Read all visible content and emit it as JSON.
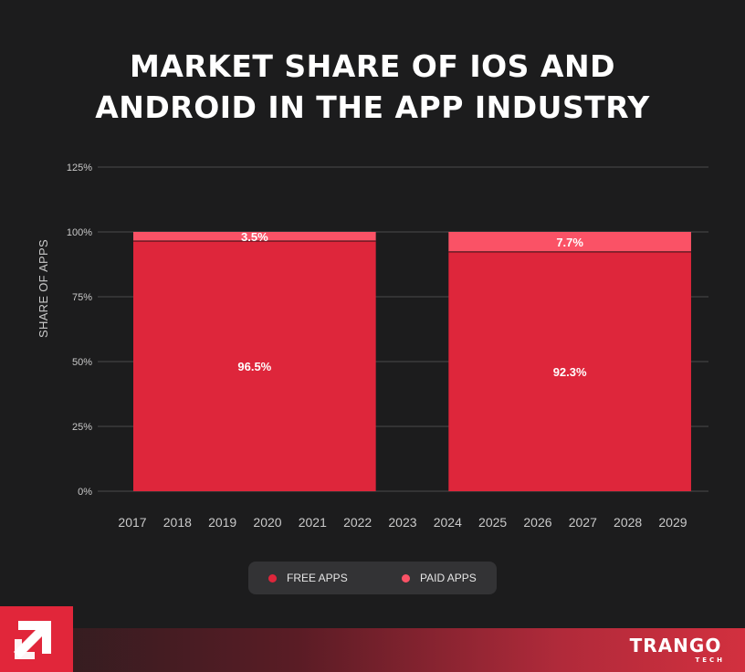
{
  "header": {
    "title_line1": "MARKET SHARE OF IOS AND",
    "title_line2": "ANDROID IN THE APP INDUSTRY"
  },
  "chart_data": {
    "type": "bar",
    "stacked": true,
    "title": "MARKET SHARE OF IOS AND ANDROID IN THE APP INDUSTRY",
    "xlabel": "",
    "ylabel": "SHARE OF APPS",
    "ylim": [
      0,
      125
    ],
    "yticks": [
      0,
      25,
      50,
      75,
      100,
      125
    ],
    "ytick_labels": [
      "0%",
      "25%",
      "50%",
      "75%",
      "100%",
      "125%"
    ],
    "x_tick_labels": [
      "2017",
      "2018",
      "2019",
      "2020",
      "2021",
      "2022",
      "2023",
      "2024",
      "2025",
      "2026",
      "2027",
      "2028",
      "2029"
    ],
    "grid": true,
    "bars": [
      {
        "x_start": 2017,
        "x_end": 2022,
        "free": 96.5,
        "paid": 3.5,
        "free_label": "96.5%",
        "paid_label": "3.5%"
      },
      {
        "x_start": 2024,
        "x_end": 2029,
        "free": 92.3,
        "paid": 7.7,
        "free_label": "92.3%",
        "paid_label": "7.7%"
      }
    ],
    "series": [
      {
        "name": "FREE APPS",
        "color": "#de263b"
      },
      {
        "name": "PAID APPS",
        "color": "#fa5266"
      }
    ],
    "legend_position": "bottom"
  },
  "legend": {
    "free_label": "FREE APPS",
    "paid_label": "PAID APPS"
  },
  "brand": {
    "name": "TRANGO",
    "sub": "TECH",
    "logo_icon": "trango-arrow-logo-icon"
  },
  "colors": {
    "background": "#1c1c1d",
    "free": "#de263b",
    "paid": "#fa5266",
    "grid": "#4a4a4c",
    "axis_text": "#c9c9c9"
  }
}
